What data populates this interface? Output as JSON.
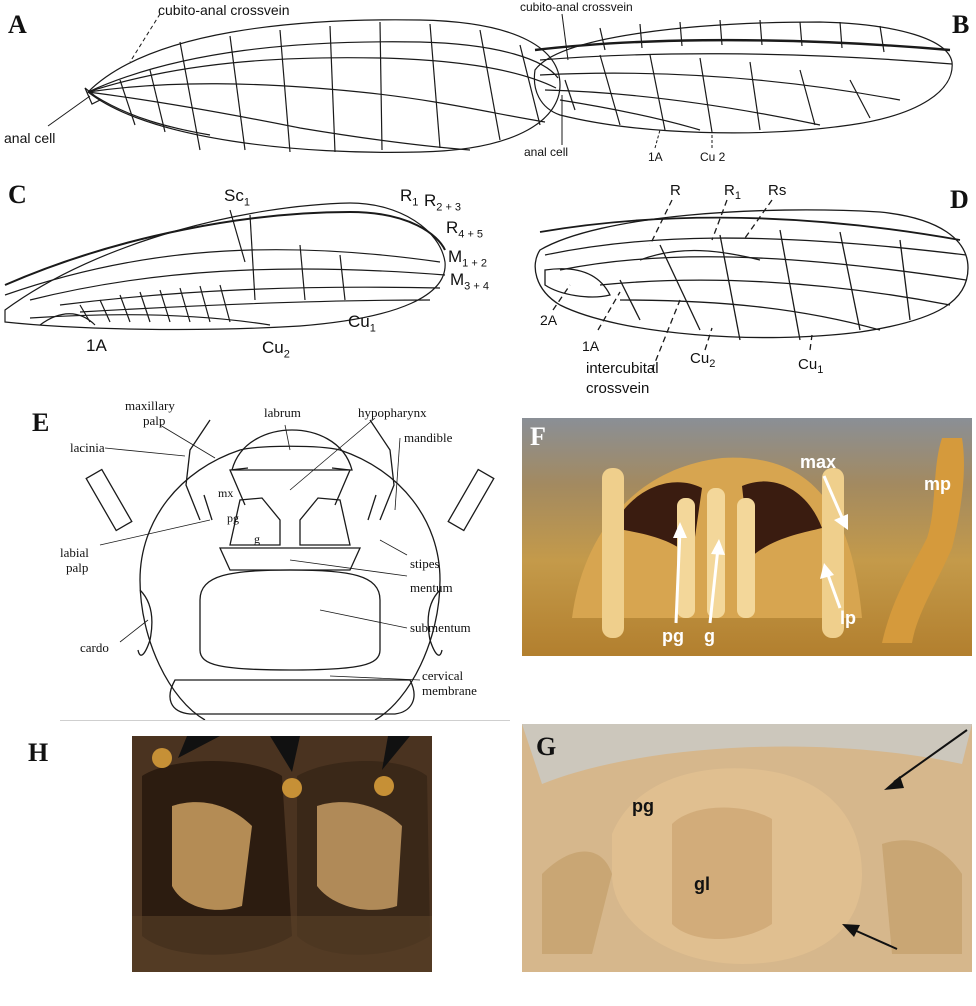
{
  "panels": {
    "A": {
      "letter": "A",
      "labels": {
        "crossvein": "cubito-anal crossvein",
        "anal_cell": "anal cell"
      }
    },
    "B": {
      "letter": "B",
      "labels": {
        "crossvein": "cubito-anal crossvein",
        "anal_cell": "anal cell",
        "one_a": "1A",
        "cu2": "Cu 2"
      }
    },
    "C": {
      "letter": "C",
      "labels": {
        "sc1_base": "Sc",
        "sc1_sub": "1",
        "r1_base": "R",
        "r1_sub": "1",
        "r23_base": "R",
        "r23_sub": "2 + 3",
        "r45_base": "R",
        "r45_sub": "4 + 5",
        "m12_base": "M",
        "m12_sub": "1 + 2",
        "m34_base": "M",
        "m34_sub": "3 + 4",
        "cu1_base": "Cu",
        "cu1_sub": "1",
        "cu2_base": "Cu",
        "cu2_sub": "2",
        "one_a": "1A"
      }
    },
    "D": {
      "letter": "D",
      "labels": {
        "r": "R",
        "r1_base": "R",
        "r1_sub": "1",
        "rs": "Rs",
        "two_a": "2A",
        "one_a": "1A",
        "intercubital_1": "intercubital",
        "intercubital_2": "crossvein",
        "cu2_base": "Cu",
        "cu2_sub": "2",
        "cu1_base": "Cu",
        "cu1_sub": "1"
      }
    },
    "E": {
      "letter": "E",
      "labels": {
        "maxillary_palp_1": "maxillary",
        "maxillary_palp_2": "palp",
        "labrum": "labrum",
        "hypopharynx": "hypopharynx",
        "mandible": "mandible",
        "lacinia": "lacinia",
        "mx": "mx",
        "pg": "pg",
        "g": "g",
        "labial_palp_1": "labial",
        "labial_palp_2": "palp",
        "stipes": "stipes",
        "mentum": "mentum",
        "submentum": "submentum",
        "cardo": "cardo",
        "cervical_1": "cervical",
        "cervical_2": "membrane"
      }
    },
    "F": {
      "letter": "F",
      "labels": {
        "max": "max",
        "mp": "mp",
        "pg": "pg",
        "g": "g",
        "lp": "lp"
      }
    },
    "G": {
      "letter": "G",
      "labels": {
        "pg": "pg",
        "gl": "gl"
      }
    },
    "H": {
      "letter": "H"
    }
  },
  "colors": {
    "line": "#1a1a1a",
    "photo_f_bg": "#a8772e",
    "photo_g_bg": "#d8b888",
    "photo_h_bg": "#5a3d22",
    "arrow_white": "#ffffff",
    "arrow_black": "#111111"
  }
}
